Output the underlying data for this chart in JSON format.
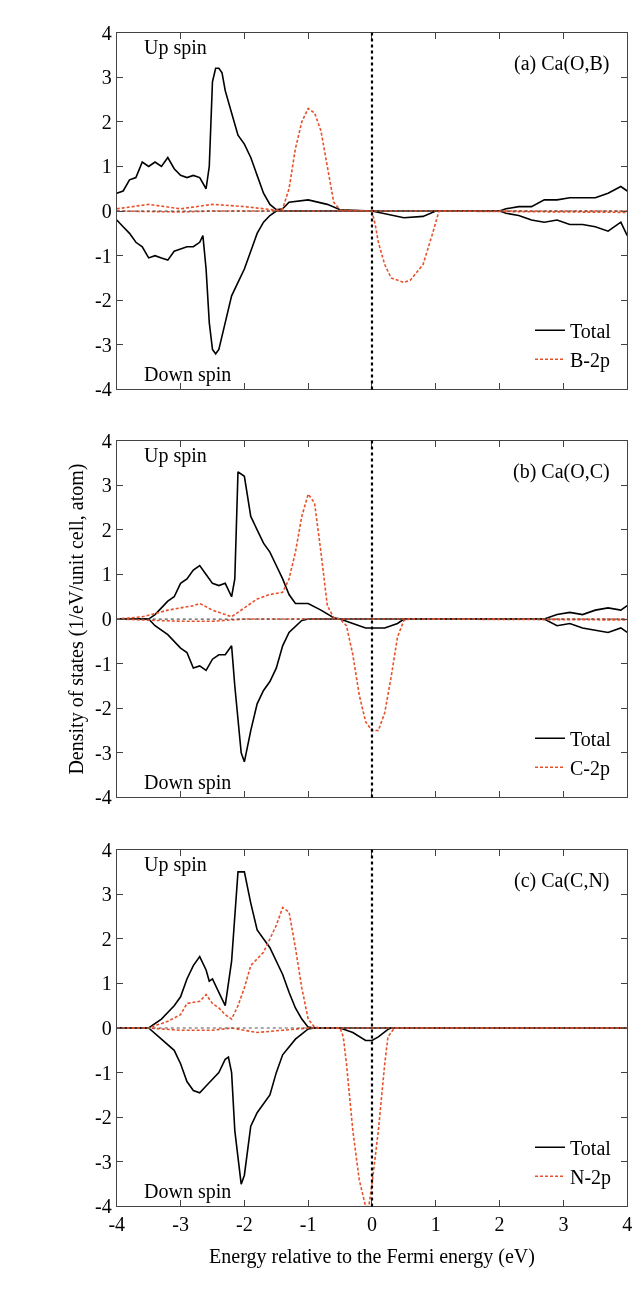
{
  "chart_data": [
    {
      "type": "line",
      "title": "(a) Ca(O,B)",
      "annotations": [
        "Up spin",
        "Down spin"
      ],
      "xlim": [
        -4,
        4
      ],
      "ylim": [
        -4,
        4
      ],
      "xticks": [
        -4,
        -3,
        -2,
        -1,
        0,
        1,
        2,
        3,
        4
      ],
      "yticks": [
        -4,
        -3,
        -2,
        -1,
        0,
        1,
        2,
        3,
        4
      ],
      "tick_labels": "y",
      "legend": "bottom right",
      "marker": "none",
      "ref_lines": [
        {
          "axis": "x",
          "value": 0,
          "label": null,
          "color": "#000000",
          "line_style": "dotted"
        },
        {
          "axis": "y",
          "value": 0,
          "label": null,
          "color": "#555555",
          "line_style": "dotted"
        }
      ],
      "series": [
        {
          "name": "Total",
          "color": "#000000",
          "line_style": "solid",
          "x": [
            -4,
            -3.9,
            -3.8,
            -3.7,
            -3.6,
            -3.5,
            -3.4,
            -3.3,
            -3.2,
            -3.1,
            -3.0,
            -2.9,
            -2.8,
            -2.7,
            -2.6,
            -2.55,
            -2.5,
            -2.45,
            -2.4,
            -2.35,
            -2.3,
            -2.2,
            -2.1,
            -2.0,
            -1.9,
            -1.8,
            -1.7,
            -1.6,
            -1.5,
            -1.4,
            -1.3,
            -1.0,
            -0.7,
            -0.5,
            0,
            0.5,
            0.8,
            1.0,
            2.0,
            2.1,
            2.3,
            2.5,
            2.7,
            2.9,
            3.1,
            3.3,
            3.5,
            3.7,
            3.9,
            4.0
          ],
          "values": [
            0.4,
            0.45,
            0.7,
            0.75,
            1.1,
            1.0,
            1.1,
            1.0,
            1.2,
            0.95,
            0.8,
            0.75,
            0.8,
            0.75,
            0.5,
            1.0,
            2.9,
            3.2,
            3.2,
            3.1,
            2.7,
            2.2,
            1.7,
            1.5,
            1.2,
            0.8,
            0.4,
            0.15,
            0.03,
            0.05,
            0.2,
            0.25,
            0.15,
            0.03,
            0,
            -0.15,
            -0.12,
            0,
            0,
            0.05,
            0.1,
            0.1,
            0.25,
            0.25,
            0.3,
            0.3,
            0.3,
            0.4,
            0.55,
            0.45
          ]
        },
        {
          "color": "#000000",
          "line_style": "solid",
          "x": [
            -4,
            -3.9,
            -3.8,
            -3.7,
            -3.6,
            -3.5,
            -3.4,
            -3.3,
            -3.2,
            -3.1,
            -3.0,
            -2.9,
            -2.8,
            -2.7,
            -2.65,
            -2.6,
            -2.55,
            -2.5,
            -2.45,
            -2.4,
            -2.3,
            -2.2,
            -2.1,
            -2.0,
            -1.9,
            -1.8,
            -1.7,
            -1.6,
            -1.5,
            2.0,
            2.1,
            2.3,
            2.5,
            2.7,
            2.9,
            3.1,
            3.3,
            3.5,
            3.7,
            3.9,
            4.0
          ],
          "values": [
            -0.2,
            -0.35,
            -0.5,
            -0.7,
            -0.8,
            -1.05,
            -1.0,
            -1.05,
            -1.1,
            -0.9,
            -0.85,
            -0.8,
            -0.8,
            -0.7,
            -0.55,
            -1.3,
            -2.5,
            -3.1,
            -3.2,
            -3.1,
            -2.5,
            -1.9,
            -1.6,
            -1.3,
            -0.9,
            -0.5,
            -0.25,
            -0.1,
            0,
            0,
            -0.05,
            -0.1,
            -0.2,
            -0.25,
            -0.2,
            -0.3,
            -0.3,
            -0.35,
            -0.45,
            -0.25,
            -0.55
          ]
        },
        {
          "name": "B-2p",
          "color": "#e8502a",
          "line_style": "dashed",
          "x": [
            -4,
            -3.5,
            -3,
            -2.5,
            -2,
            -1.5,
            -1.4,
            -1.3,
            -1.2,
            -1.1,
            -1.0,
            -0.9,
            -0.8,
            -0.7,
            -0.6,
            -0.5,
            0,
            4
          ],
          "values": [
            0.05,
            0.15,
            0.05,
            0.15,
            0.1,
            0.02,
            0.05,
            0.5,
            1.4,
            2.0,
            2.3,
            2.2,
            1.8,
            1.0,
            0.2,
            0.02,
            0,
            0
          ]
        },
        {
          "color": "#e8502a",
          "line_style": "dashed",
          "x": [
            -4,
            -3,
            -2.5,
            -1.5,
            0,
            0.05,
            0.1,
            0.2,
            0.3,
            0.5,
            0.6,
            0.8,
            0.95,
            1.05,
            4
          ],
          "values": [
            0,
            -0.02,
            0,
            0,
            0,
            -0.3,
            -0.7,
            -1.2,
            -1.5,
            -1.6,
            -1.55,
            -1.2,
            -0.5,
            0,
            -0.03
          ]
        }
      ]
    },
    {
      "type": "line",
      "title": "(b) Ca(O,C)",
      "ylabel": "Density of states (1/eV/unit cell, atom)",
      "annotations": [
        "Up spin",
        "Down spin"
      ],
      "xlim": [
        -4,
        4
      ],
      "ylim": [
        -4,
        4
      ],
      "xticks": [
        -4,
        -3,
        -2,
        -1,
        0,
        1,
        2,
        3,
        4
      ],
      "yticks": [
        -4,
        -3,
        -2,
        -1,
        0,
        1,
        2,
        3,
        4
      ],
      "tick_labels": "y",
      "legend": "bottom right",
      "marker": "none",
      "ref_lines": [
        {
          "axis": "x",
          "value": 0,
          "label": null,
          "color": "#000000",
          "line_style": "dotted"
        },
        {
          "axis": "y",
          "value": 0,
          "label": null,
          "color": "#555555",
          "line_style": "dotted"
        }
      ],
      "series": [
        {
          "name": "Total",
          "color": "#000000",
          "line_style": "solid",
          "x": [
            -4,
            -3.5,
            -3.4,
            -3.3,
            -3.2,
            -3.1,
            -3.0,
            -2.9,
            -2.8,
            -2.7,
            -2.6,
            -2.5,
            -2.4,
            -2.3,
            -2.2,
            -2.15,
            -2.1,
            -2.0,
            -1.9,
            -1.8,
            -1.7,
            -1.6,
            -1.5,
            -1.4,
            -1.3,
            -1.2,
            -1.0,
            -0.8,
            -0.6,
            -0.5,
            2.7,
            2.9,
            3.1,
            3.3,
            3.5,
            3.7,
            3.9,
            4
          ],
          "values": [
            0,
            0,
            0.1,
            0.25,
            0.4,
            0.5,
            0.8,
            0.9,
            1.1,
            1.2,
            1.0,
            0.8,
            0.75,
            0.8,
            0.5,
            0.9,
            3.3,
            3.2,
            2.3,
            2.0,
            1.7,
            1.5,
            1.2,
            0.9,
            0.55,
            0.35,
            0.35,
            0.2,
            0.03,
            0,
            0,
            0.1,
            0.15,
            0.1,
            0.2,
            0.25,
            0.2,
            0.3
          ]
        },
        {
          "color": "#000000",
          "line_style": "solid",
          "x": [
            -4,
            -3.5,
            -3.4,
            -3.2,
            -3.0,
            -2.9,
            -2.8,
            -2.7,
            -2.6,
            -2.5,
            -2.4,
            -2.3,
            -2.2,
            -2.15,
            -2.05,
            -2.0,
            -1.9,
            -1.8,
            -1.7,
            -1.6,
            -1.5,
            -1.4,
            -1.3,
            -1.1,
            -1.0,
            -0.5,
            -0.3,
            -0.1,
            0.2,
            0.4,
            0.5,
            2.7,
            2.9,
            3.1,
            3.3,
            3.5,
            3.7,
            3.9,
            4
          ],
          "values": [
            0,
            0,
            -0.15,
            -0.35,
            -0.65,
            -0.75,
            -1.1,
            -1.05,
            -1.15,
            -0.9,
            -0.8,
            -0.8,
            -0.6,
            -1.5,
            -3.0,
            -3.2,
            -2.5,
            -1.9,
            -1.6,
            -1.4,
            -1.1,
            -0.6,
            -0.3,
            -0.03,
            0,
            0,
            -0.1,
            -0.2,
            -0.2,
            -0.1,
            0,
            0,
            -0.15,
            -0.1,
            -0.2,
            -0.25,
            -0.3,
            -0.2,
            -0.3
          ]
        },
        {
          "name": "C-2p",
          "color": "#e8502a",
          "line_style": "dashed",
          "x": [
            -4,
            -3.6,
            -3.2,
            -2.8,
            -2.7,
            -2.5,
            -2.3,
            -2.2,
            -2.0,
            -1.8,
            -1.6,
            -1.4,
            -1.3,
            -1.2,
            -1.1,
            -1.0,
            -0.9,
            -0.8,
            -0.7,
            -0.6,
            -0.5,
            4
          ],
          "values": [
            0,
            0.05,
            0.2,
            0.3,
            0.35,
            0.2,
            0.1,
            0.05,
            0.25,
            0.45,
            0.55,
            0.6,
            0.9,
            1.5,
            2.3,
            2.8,
            2.6,
            1.5,
            0.3,
            0.03,
            0,
            0
          ]
        },
        {
          "color": "#e8502a",
          "line_style": "dashed",
          "x": [
            -4,
            -3,
            -2.5,
            -2,
            -1,
            -0.5,
            -0.4,
            -0.3,
            -0.2,
            -0.1,
            0,
            0.1,
            0.2,
            0.3,
            0.4,
            0.5,
            0.6,
            4
          ],
          "values": [
            0,
            -0.05,
            -0.05,
            0,
            0,
            0,
            -0.15,
            -0.8,
            -1.7,
            -2.3,
            -2.5,
            -2.5,
            -2.1,
            -1.3,
            -0.4,
            -0.03,
            0,
            -0.02
          ]
        }
      ]
    },
    {
      "type": "line",
      "title": "(c) Ca(C,N)",
      "xlabel": "Energy relative to the Fermi energy (eV)",
      "annotations": [
        "Up spin",
        "Down spin"
      ],
      "xlim": [
        -4,
        4
      ],
      "ylim": [
        -4,
        4
      ],
      "xticks": [
        -4,
        -3,
        -2,
        -1,
        0,
        1,
        2,
        3,
        4
      ],
      "yticks": [
        -4,
        -3,
        -2,
        -1,
        0,
        1,
        2,
        3,
        4
      ],
      "legend": "bottom right",
      "marker": "none",
      "ref_lines": [
        {
          "axis": "x",
          "value": 0,
          "label": null,
          "color": "#000000",
          "line_style": "dotted"
        },
        {
          "axis": "y",
          "value": 0,
          "label": null,
          "color": "#555555",
          "line_style": "dotted"
        }
      ],
      "series": [
        {
          "name": "Total",
          "color": "#000000",
          "line_style": "solid",
          "x": [
            -4,
            -3.5,
            -3.3,
            -3.1,
            -3.0,
            -2.9,
            -2.8,
            -2.7,
            -2.6,
            -2.55,
            -2.5,
            -2.4,
            -2.3,
            -2.2,
            -2.1,
            -2.0,
            -1.9,
            -1.8,
            -1.6,
            -1.4,
            -1.3,
            -1.2,
            -1.1,
            -1.0,
            -0.9,
            4
          ],
          "values": [
            0,
            0,
            0.2,
            0.5,
            0.7,
            1.1,
            1.4,
            1.6,
            1.3,
            1.05,
            1.1,
            0.8,
            0.5,
            1.5,
            3.5,
            3.5,
            2.8,
            2.2,
            1.8,
            1.2,
            0.8,
            0.45,
            0.2,
            0.02,
            0,
            0
          ]
        },
        {
          "color": "#000000",
          "line_style": "solid",
          "x": [
            -4,
            -3.5,
            -3.3,
            -3.1,
            -3.0,
            -2.9,
            -2.8,
            -2.7,
            -2.6,
            -2.5,
            -2.4,
            -2.3,
            -2.25,
            -2.2,
            -2.15,
            -2.05,
            -2.0,
            -1.9,
            -1.8,
            -1.6,
            -1.5,
            -1.4,
            -1.2,
            -1.0,
            -0.9,
            -0.5,
            -0.3,
            -0.1,
            0,
            0.1,
            0.25,
            0.3,
            4
          ],
          "values": [
            0,
            0,
            -0.25,
            -0.5,
            -0.8,
            -1.2,
            -1.4,
            -1.45,
            -1.3,
            -1.15,
            -1.0,
            -0.7,
            -0.65,
            -1.0,
            -2.3,
            -3.5,
            -3.3,
            -2.2,
            -1.9,
            -1.5,
            -1.0,
            -0.6,
            -0.25,
            -0.02,
            0,
            0,
            -0.1,
            -0.28,
            -0.28,
            -0.2,
            -0.03,
            0,
            0
          ]
        },
        {
          "name": "N-2p",
          "color": "#e8502a",
          "line_style": "dashed",
          "x": [
            -4,
            -3.5,
            -3.2,
            -3.0,
            -2.9,
            -2.7,
            -2.6,
            -2.5,
            -2.4,
            -2.3,
            -2.2,
            -2.1,
            -2.0,
            -1.9,
            -1.7,
            -1.5,
            -1.4,
            -1.3,
            -1.2,
            -1.1,
            -1.0,
            -0.9,
            -0.8,
            4
          ],
          "values": [
            0,
            0,
            0.15,
            0.3,
            0.55,
            0.6,
            0.75,
            0.55,
            0.45,
            0.3,
            0.2,
            0.5,
            0.9,
            1.4,
            1.7,
            2.3,
            2.7,
            2.6,
            1.8,
            0.9,
            0.2,
            0.02,
            0,
            0
          ]
        },
        {
          "color": "#e8502a",
          "line_style": "dashed",
          "x": [
            -4,
            -3.5,
            -3,
            -2.5,
            -2.2,
            -1.8,
            -1.4,
            -1.0,
            -0.5,
            -0.45,
            -0.4,
            -0.3,
            -0.2,
            -0.1,
            -0.05,
            0,
            0.1,
            0.2,
            0.25,
            0.35,
            4
          ],
          "values": [
            0,
            0,
            -0.05,
            -0.05,
            0,
            -0.1,
            -0.05,
            0,
            0,
            -0.2,
            -0.8,
            -2.3,
            -3.4,
            -4.0,
            -4.0,
            -3.5,
            -2.3,
            -0.8,
            -0.2,
            0,
            0
          ]
        }
      ]
    }
  ]
}
